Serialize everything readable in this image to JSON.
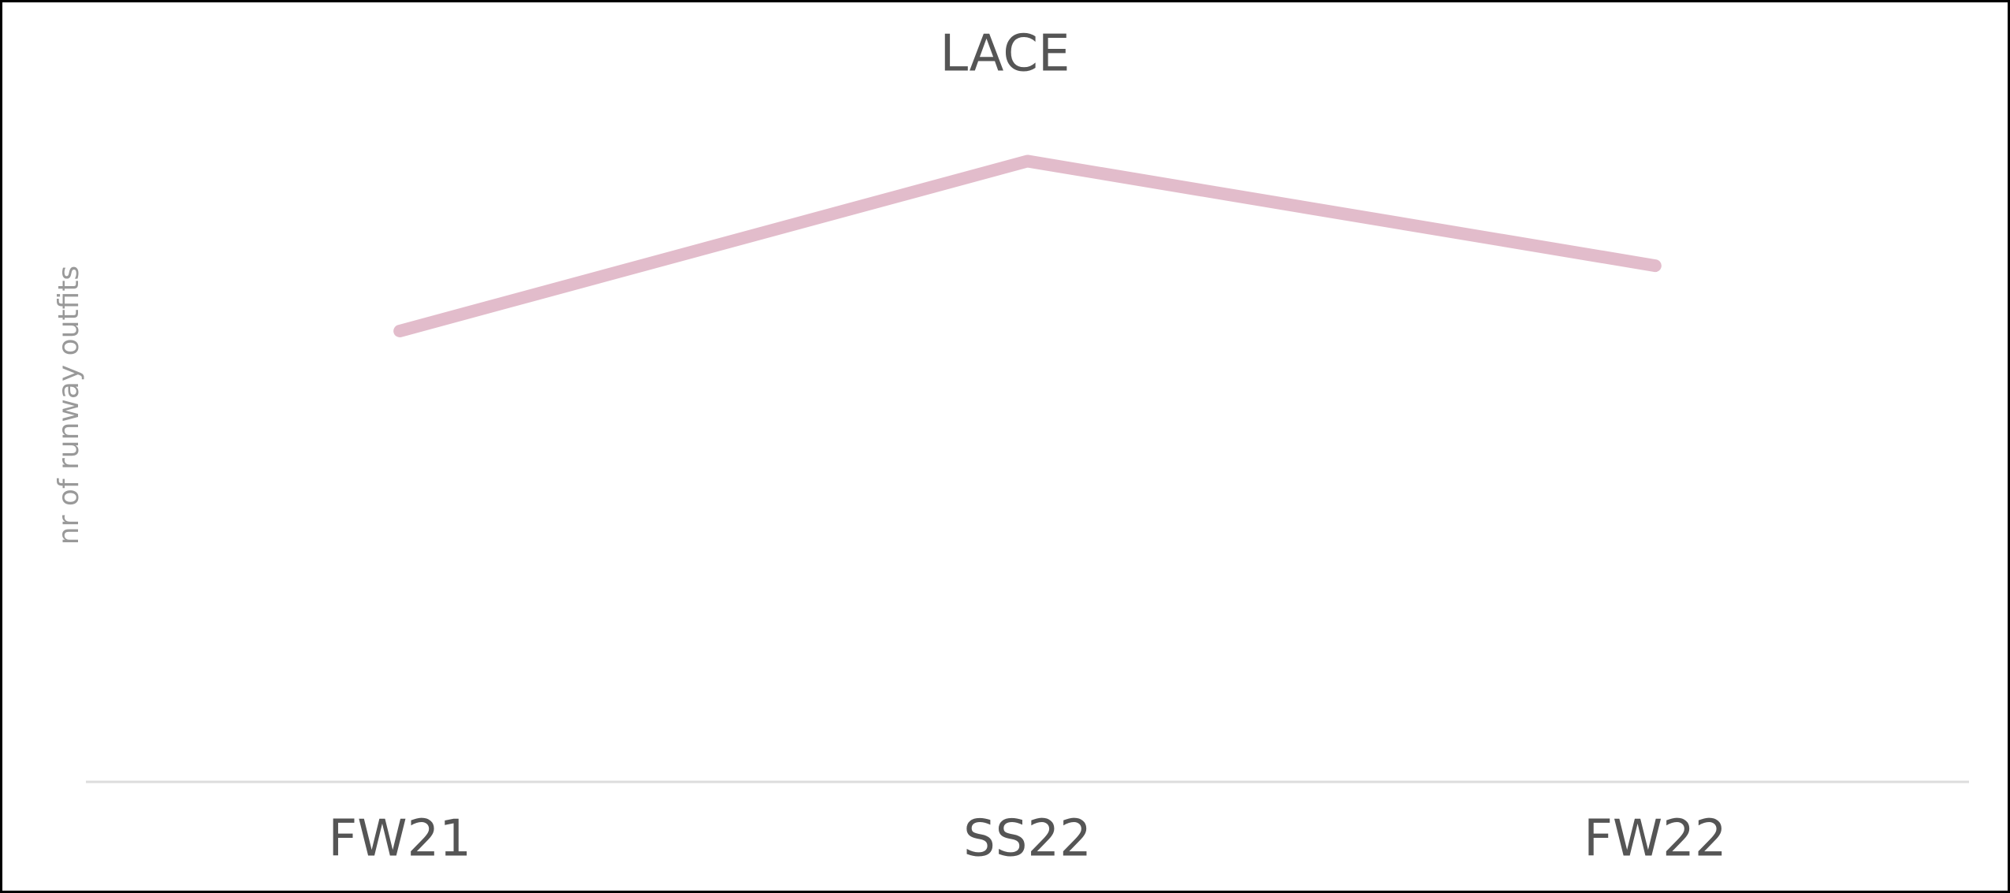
{
  "chart_data": {
    "type": "line",
    "title": "LACE",
    "y_label": "nr of runway outfits",
    "categories": [
      "FW21",
      "SS22",
      "FW22"
    ],
    "series": [
      {
        "color": "#e2bccb",
        "values": [
          69,
          95,
          79
        ]
      }
    ],
    "ylim": [
      0,
      100
    ]
  }
}
